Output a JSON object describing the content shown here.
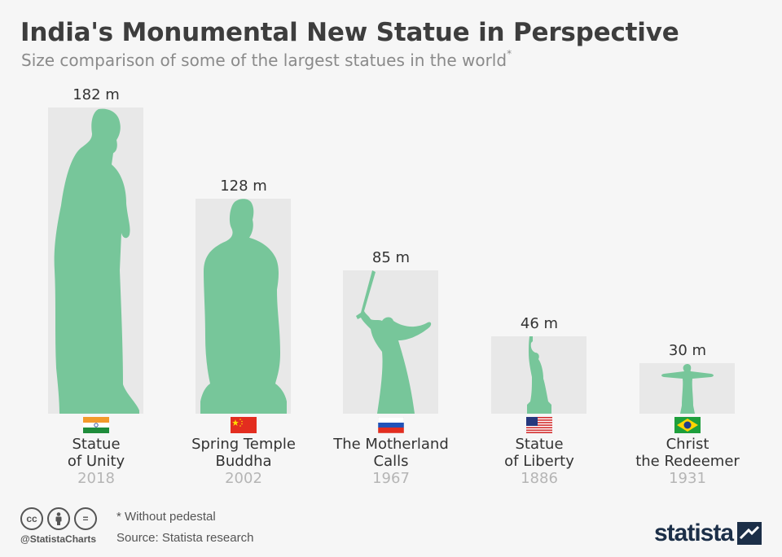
{
  "header": {
    "title": "India's Monumental New Statue in Perspective",
    "subtitle": "Size comparison of some of the largest statues in the world",
    "subtitle_mark": "*"
  },
  "colors": {
    "silhouette": "#77c69a",
    "box": "#e8e8e8",
    "brand": "#1c2f48",
    "year": "#b5b5b5"
  },
  "chart_data": {
    "type": "bar",
    "categories": [
      "Statue of Unity",
      "Spring Temple Buddha",
      "The Motherland Calls",
      "Statue of Liberty",
      "Christ the Redeemer"
    ],
    "values": [
      182,
      128,
      85,
      46,
      30
    ],
    "unit": "m",
    "ylim": [
      0,
      182
    ],
    "title": "India's Monumental New Statue in Perspective",
    "subtitle": "Size comparison of some of the largest statues in the world*"
  },
  "statues": [
    {
      "value_label": "182 m",
      "name_line1": "Statue",
      "name_line2": "of Unity",
      "year": "2018",
      "flag": "india-flag",
      "shape": "statue-of-unity-silhouette"
    },
    {
      "value_label": "128 m",
      "name_line1": "Spring Temple",
      "name_line2": "Buddha",
      "year": "2002",
      "flag": "china-flag",
      "shape": "buddha-silhouette"
    },
    {
      "value_label": "85 m",
      "name_line1": "The Motherland",
      "name_line2": "Calls",
      "year": "1967",
      "flag": "russia-flag",
      "shape": "motherland-silhouette"
    },
    {
      "value_label": "46 m",
      "name_line1": "Statue",
      "name_line2": "of Liberty",
      "year": "1886",
      "flag": "usa-flag",
      "shape": "liberty-silhouette"
    },
    {
      "value_label": "30 m",
      "name_line1": "Christ",
      "name_line2": "the Redeemer",
      "year": "1931",
      "flag": "brazil-flag",
      "shape": "christ-silhouette"
    }
  ],
  "footer": {
    "icons": [
      "cc-icon",
      "attribution-icon",
      "no-derivatives-icon"
    ],
    "cc_text": "cc",
    "equals_text": "=",
    "handle": "@StatistaCharts",
    "note": "* Without pedestal",
    "source": "Source: Statista research",
    "brand": "statista"
  }
}
